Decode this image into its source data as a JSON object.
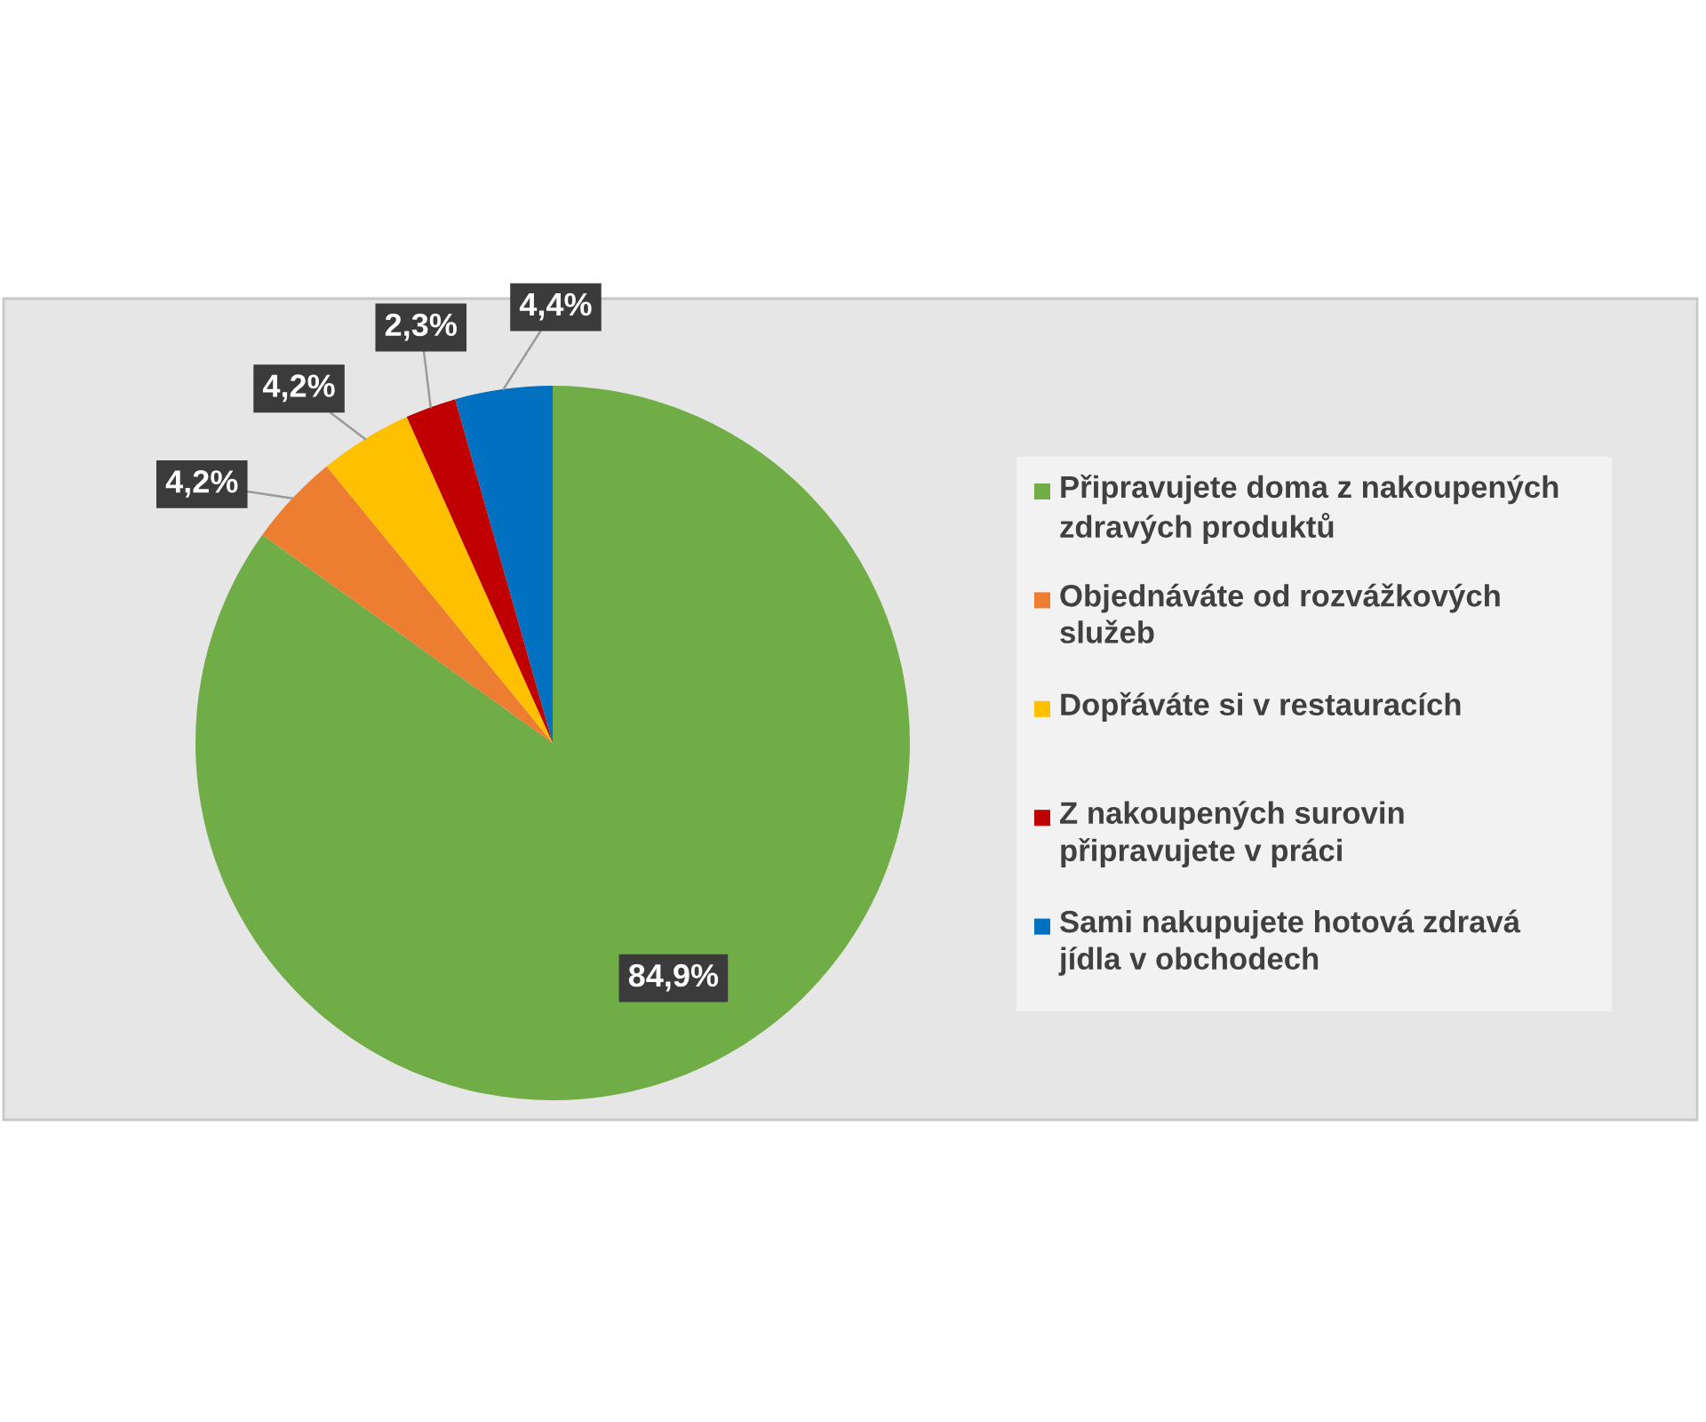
{
  "chart_data": {
    "type": "pie",
    "categories": [
      "Připravujete doma z nakoupených\nzdravých produktů",
      "Objednáváte od rozvážkových\nslužeb",
      "Dopřáváte si v restauracích",
      "Z nakoupených surovin\npřipravujete v práci",
      "Sami nakupujete hotová zdravá\njídla v obchodech"
    ],
    "values": [
      84.9,
      4.2,
      4.2,
      2.3,
      4.4
    ],
    "colors": [
      "#70ad47",
      "#ed7d31",
      "#ffc000",
      "#c00000",
      "#0070c0"
    ],
    "value_labels": [
      "84,9%",
      "4,2%",
      "4,2%",
      "2,3%",
      "4,4%"
    ],
    "legend": "right"
  }
}
